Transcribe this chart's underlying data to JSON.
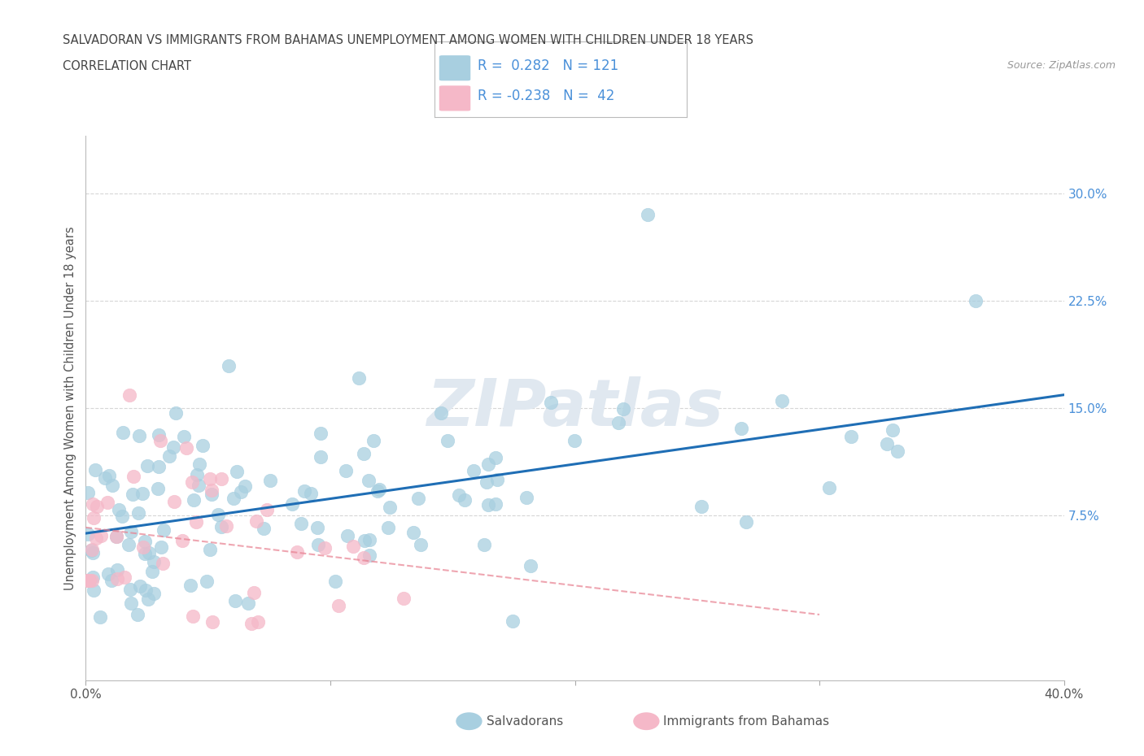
{
  "title_line1": "SALVADORAN VS IMMIGRANTS FROM BAHAMAS UNEMPLOYMENT AMONG WOMEN WITH CHILDREN UNDER 18 YEARS",
  "title_line2": "CORRELATION CHART",
  "source_text": "Source: ZipAtlas.com",
  "ylabel": "Unemployment Among Women with Children Under 18 years",
  "xlim": [
    0.0,
    0.4
  ],
  "ylim": [
    -0.04,
    0.34
  ],
  "xticks": [
    0.0,
    0.1,
    0.2,
    0.3,
    0.4
  ],
  "xticklabels": [
    "0.0%",
    "",
    "",
    "",
    "40.0%"
  ],
  "ytick_positions": [
    0.075,
    0.15,
    0.225,
    0.3
  ],
  "ytick_labels": [
    "7.5%",
    "15.0%",
    "22.5%",
    "30.0%"
  ],
  "r_salvadoran": 0.282,
  "n_salvadoran": 121,
  "r_bahamas": -0.238,
  "n_bahamas": 42,
  "salvadoran_color": "#a8cfe0",
  "bahamas_color": "#f5b8c8",
  "trend_salvadoran_color": "#1f6eb5",
  "trend_bahamas_color": "#e88090",
  "background_color": "#ffffff",
  "grid_color": "#cccccc",
  "title_color": "#444444",
  "label_color": "#555555",
  "tick_color": "#4a90d9",
  "watermark_color": "#e0e8f0",
  "legend_label_1": "Salvadorans",
  "legend_label_2": "Immigrants from Bahamas"
}
